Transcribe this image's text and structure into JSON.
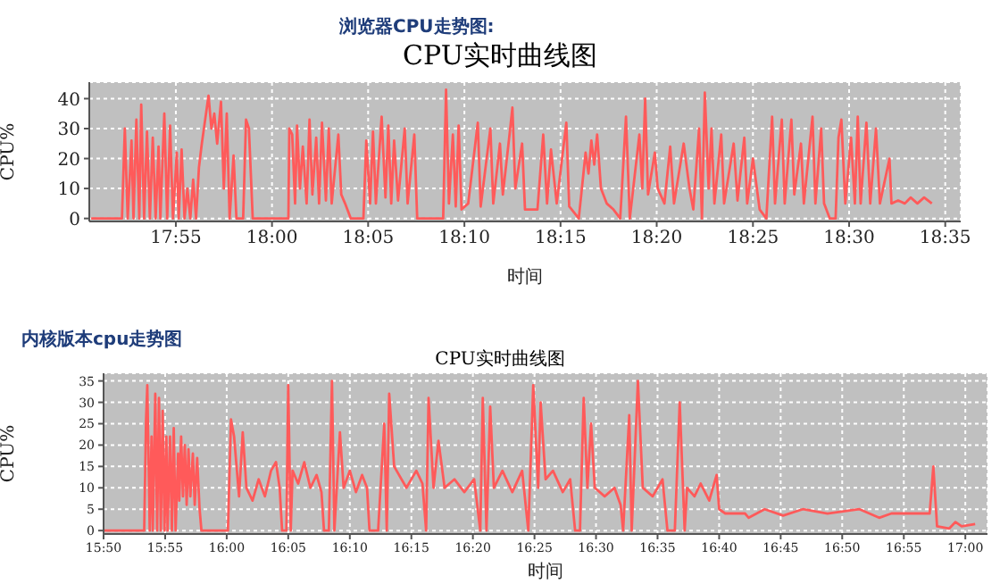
{
  "chart_data": [
    {
      "type": "line",
      "subtitle": "浏览器CPU走势图:",
      "title": "CPU实时曲线图",
      "xlabel": "时间",
      "ylabel": "CPU%",
      "color": "#ff5a5a",
      "grid": true,
      "marker": "none",
      "line_style": "solid",
      "xlim": [
        17.8417,
        18.5967
      ],
      "ylim": [
        -1,
        45.5
      ],
      "yticks": [
        0,
        10,
        20,
        30,
        40
      ],
      "xticks": [
        {
          "value": 17.9167,
          "label": "17:55"
        },
        {
          "value": 18,
          "label": "18:00"
        },
        {
          "value": 18.0833,
          "label": "18:05"
        },
        {
          "value": 18.1667,
          "label": "18:10"
        },
        {
          "value": 18.25,
          "label": "18:15"
        },
        {
          "value": 18.3333,
          "label": "18:20"
        },
        {
          "value": 18.4167,
          "label": "18:25"
        },
        {
          "value": 18.5,
          "label": "18:30"
        },
        {
          "value": 18.5833,
          "label": "18:35"
        }
      ],
      "x": [
        17.8433,
        17.87,
        17.8725,
        17.875,
        17.8783,
        17.88,
        17.8825,
        17.885,
        17.8867,
        17.8892,
        17.8917,
        17.8942,
        17.8967,
        17.8992,
        17.9017,
        17.9033,
        17.9067,
        17.9092,
        17.9117,
        17.9142,
        17.9175,
        17.9192,
        17.9217,
        17.9242,
        17.9267,
        17.9292,
        17.9317,
        17.9342,
        17.9367,
        17.9392,
        17.945,
        17.9475,
        17.95,
        17.9525,
        17.9558,
        17.9583,
        17.9608,
        17.9633,
        17.9667,
        17.9692,
        17.975,
        17.9775,
        17.98,
        17.9833,
        18.0142,
        18.015,
        18.0175,
        18.02,
        18.0217,
        18.0242,
        18.0267,
        18.03,
        18.0325,
        18.035,
        18.0383,
        18.0408,
        18.0433,
        18.0467,
        18.0492,
        18.0517,
        18.0575,
        18.06,
        18.0633,
        18.0683,
        18.0792,
        18.0817,
        18.085,
        18.0875,
        18.09,
        18.095,
        18.0983,
        18.1008,
        18.1033,
        18.1058,
        18.1092,
        18.115,
        18.1175,
        18.1233,
        18.1258,
        18.1483,
        18.1508,
        18.1533,
        18.1567,
        18.1592,
        18.1617,
        18.1642,
        18.17,
        18.1783,
        18.1808,
        18.1892,
        18.1917,
        18.1975,
        18.2,
        18.2058,
        18.2083,
        18.2108,
        18.2167,
        18.2192,
        18.23,
        18.235,
        18.2383,
        18.2417,
        18.2467,
        18.255,
        18.2575,
        18.2658,
        18.2717,
        18.2742,
        18.2767,
        18.2792,
        18.2817,
        18.285,
        18.29,
        18.2958,
        18.3017,
        18.3067,
        18.31,
        18.3183,
        18.3208,
        18.3233,
        18.3258,
        18.3317,
        18.3342,
        18.34,
        18.345,
        18.3483,
        18.3567,
        18.3617,
        18.365,
        18.37,
        18.3725,
        18.375,
        18.3783,
        18.3808,
        18.3833,
        18.3892,
        18.3917,
        18.4,
        18.4033,
        18.4092,
        18.4117,
        18.4167,
        18.4225,
        18.4283,
        18.4333,
        18.4358,
        18.4417,
        18.4442,
        18.45,
        18.4525,
        18.4583,
        18.4608,
        18.4683,
        18.4708,
        18.4758,
        18.4783,
        18.4833,
        18.4883,
        18.4908,
        18.4933,
        18.4967,
        18.5017,
        18.505,
        18.5075,
        18.51,
        18.515,
        18.5183,
        18.5233,
        18.5267,
        18.535,
        18.5367,
        18.5425,
        18.5483,
        18.5533,
        18.5592,
        18.565,
        18.5717
      ],
      "values": [
        0,
        0,
        30,
        0,
        26,
        0,
        33,
        0,
        38,
        0,
        29,
        0,
        27,
        0,
        24,
        0,
        35,
        0,
        31,
        0,
        22,
        0,
        23,
        0,
        10,
        0,
        13,
        0,
        17,
        25,
        41,
        30,
        35,
        25,
        39,
        10,
        35,
        0,
        21,
        0,
        0,
        33,
        30,
        0,
        0,
        30,
        28,
        5,
        31,
        10,
        24,
        5,
        33,
        8,
        27,
        5,
        32,
        6,
        30,
        5,
        28,
        8,
        5,
        0,
        0,
        26,
        5,
        29,
        5,
        34,
        7,
        31,
        5,
        26,
        6,
        30,
        5,
        28,
        0,
        0,
        43,
        5,
        28,
        4,
        31,
        3,
        5,
        32,
        4,
        30,
        5,
        25,
        8,
        28,
        37,
        10,
        25,
        3,
        3,
        28,
        5,
        23,
        5,
        32,
        4,
        0,
        22,
        15,
        26,
        18,
        28,
        10,
        5,
        3,
        0,
        34,
        0,
        28,
        10,
        40,
        8,
        22,
        10,
        5,
        24,
        5,
        25,
        10,
        3,
        30,
        0,
        42,
        10,
        30,
        5,
        28,
        5,
        25,
        6,
        27,
        5,
        20,
        3,
        0,
        34,
        5,
        33,
        5,
        33,
        8,
        25,
        5,
        34,
        5,
        30,
        5,
        0,
        0,
        27,
        33,
        5,
        27,
        5,
        34,
        5,
        32,
        5,
        30,
        5,
        20,
        5,
        6,
        5,
        7,
        5,
        7,
        5
      ]
    },
    {
      "type": "line",
      "subtitle": "内核版本cpu走势图",
      "title": "CPU实时曲线图",
      "xlabel": "时间",
      "ylabel": "CPU%",
      "color": "#ff5a5a",
      "grid": true,
      "marker": "none",
      "line_style": "solid",
      "xlim": [
        15.8333,
        17.03
      ],
      "ylim": [
        -0.8,
        36.8
      ],
      "yticks": [
        0,
        5,
        10,
        15,
        20,
        25,
        30,
        35
      ],
      "xticks": [
        {
          "value": 15.8333,
          "label": "15:50"
        },
        {
          "value": 15.9167,
          "label": "15:55"
        },
        {
          "value": 16,
          "label": "16:00"
        },
        {
          "value": 16.0833,
          "label": "16:05"
        },
        {
          "value": 16.1667,
          "label": "16:10"
        },
        {
          "value": 16.25,
          "label": "16:15"
        },
        {
          "value": 16.3333,
          "label": "16:20"
        },
        {
          "value": 16.4167,
          "label": "16:25"
        },
        {
          "value": 16.5,
          "label": "16:30"
        },
        {
          "value": 16.5833,
          "label": "16:35"
        },
        {
          "value": 16.6667,
          "label": "16:40"
        },
        {
          "value": 16.75,
          "label": "16:45"
        },
        {
          "value": 16.8333,
          "label": "16:50"
        },
        {
          "value": 16.9167,
          "label": "16:55"
        },
        {
          "value": 17,
          "label": "17:00"
        }
      ],
      "x": [
        15.8333,
        15.8883,
        15.8908,
        15.8925,
        15.8958,
        15.8983,
        15.9,
        15.9033,
        15.9058,
        15.9083,
        15.9108,
        15.9133,
        15.9158,
        15.9183,
        15.92,
        15.9233,
        15.9258,
        15.9283,
        15.9308,
        15.9342,
        15.9358,
        15.9383,
        15.9408,
        15.9433,
        15.9458,
        15.9483,
        15.9508,
        15.9542,
        15.9567,
        15.96,
        15.9633,
        15.9658,
        15.9933,
        16.0017,
        16.0058,
        16.01,
        16.0167,
        16.0217,
        16.0267,
        16.035,
        16.0433,
        16.0517,
        16.06,
        16.0667,
        16.0717,
        16.075,
        16.0808,
        16.0833,
        16.0867,
        16.0892,
        16.0967,
        16.105,
        16.1133,
        16.1217,
        16.1283,
        16.1317,
        16.1383,
        16.1425,
        16.1458,
        16.15,
        16.1533,
        16.1583,
        16.1667,
        16.175,
        16.1833,
        16.19,
        16.1933,
        16.205,
        16.2133,
        16.2167,
        16.22,
        16.2267,
        16.2433,
        16.2567,
        16.265,
        16.27,
        16.2733,
        16.28,
        16.2867,
        16.295,
        16.3083,
        16.3217,
        16.335,
        16.3433,
        16.3467,
        16.3517,
        16.3567,
        16.3617,
        16.3733,
        16.3867,
        16.4,
        16.4083,
        16.415,
        16.4217,
        16.425,
        16.4317,
        16.4417,
        16.455,
        16.465,
        16.4717,
        16.4783,
        16.4833,
        16.4883,
        16.4933,
        16.4983,
        16.5117,
        16.525,
        16.5333,
        16.5367,
        16.545,
        16.5483,
        16.5567,
        16.5633,
        16.5767,
        16.59,
        16.5967,
        16.6067,
        16.6133,
        16.62,
        16.6233,
        16.6333,
        16.6417,
        16.6533,
        16.6633,
        16.6667,
        16.675,
        16.7017,
        16.7067,
        16.7283,
        16.7533,
        16.78,
        16.8133,
        16.8567,
        16.8833,
        16.9,
        16.9517,
        16.9567,
        16.9617,
        16.9783,
        16.9867,
        16.995,
        17.0133
      ],
      "values": [
        0,
        0,
        26,
        34,
        0,
        22,
        0,
        32,
        0,
        31,
        0,
        28,
        0,
        22,
        0,
        22,
        0,
        24,
        0,
        18,
        7,
        22,
        8,
        20,
        6,
        19,
        8,
        18,
        6,
        17,
        5,
        0,
        0,
        0,
        26,
        22,
        8,
        23,
        10,
        7,
        12,
        8,
        14,
        16,
        10,
        0,
        0,
        34,
        0,
        14,
        11,
        16,
        10,
        13,
        9,
        0,
        0,
        35,
        0,
        13,
        23,
        10,
        14,
        9,
        13,
        10,
        0,
        0,
        25,
        0,
        32,
        15,
        10,
        14,
        11,
        0,
        31,
        10,
        21,
        10,
        12,
        9,
        12,
        0,
        31,
        0,
        29,
        10,
        14,
        9,
        14,
        0,
        34,
        10,
        30,
        12,
        14,
        9,
        12,
        0,
        0,
        31,
        10,
        25,
        10,
        8,
        10,
        6,
        0,
        27,
        0,
        35,
        10,
        8,
        12,
        0,
        0,
        30,
        0,
        10,
        8,
        11,
        7,
        13,
        5,
        4,
        4,
        3,
        5,
        3.5,
        5,
        4,
        5,
        3,
        4,
        4,
        15,
        1,
        0.5,
        2,
        1,
        1.5
      ]
    }
  ]
}
